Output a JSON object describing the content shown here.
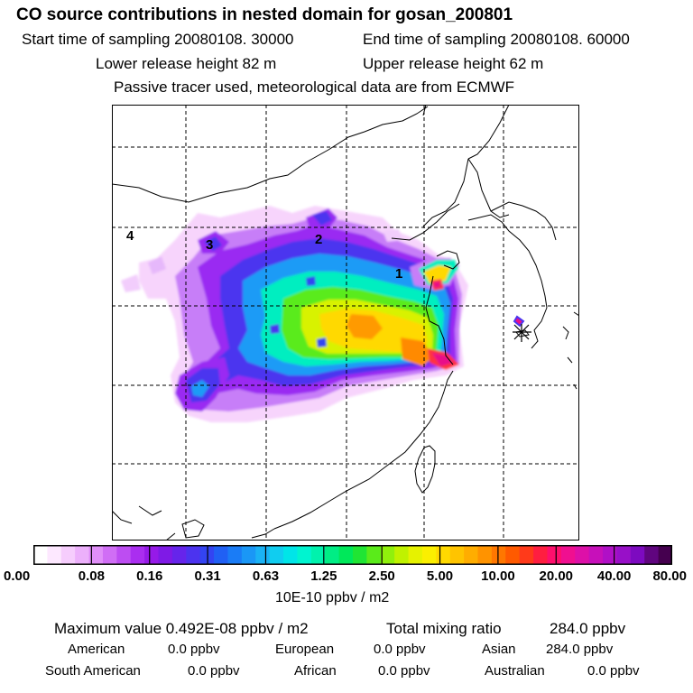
{
  "header": {
    "title": "CO  source contributions in nested domain for gosan_200801",
    "start_label": "Start time of sampling 20080108. 30000",
    "end_label": "End time of sampling 20080108. 60000",
    "lower_label": "Lower release height   82 m",
    "upper_label": "Upper release height   62 m",
    "info": "Passive tracer used, meteorological data are from ECMWF"
  },
  "map": {
    "region_markers": [
      "1",
      "2",
      "3",
      "4"
    ],
    "receptor_marker": "gosan-station"
  },
  "colorbar": {
    "ticks": [
      "0.00",
      "0.08",
      "0.16",
      "0.31",
      "0.63",
      "1.25",
      "2.50",
      "5.00",
      "10.00",
      "20.00",
      "40.00",
      "80.00"
    ],
    "colors": [
      "#ffffff",
      "#fde8ff",
      "#f6cdfd",
      "#ecb0fb",
      "#e08ff8",
      "#d06ef5",
      "#bd4df2",
      "#aa2ef0",
      "#961ae8",
      "#7f1ae6",
      "#6624eb",
      "#4c33ef",
      "#3344f2",
      "#2060f4",
      "#1a7cf6",
      "#1a97f6",
      "#1ab2f5",
      "#10cdf0",
      "#00e5e8",
      "#00f4d0",
      "#00f2ad",
      "#00ed85",
      "#00e85a",
      "#20e534",
      "#5aeb1a",
      "#90f00c",
      "#c0f200",
      "#e6f200",
      "#fbef00",
      "#ffd900",
      "#ffc400",
      "#ffad00",
      "#ff9300",
      "#ff7700",
      "#ff5a00",
      "#ff3a1a",
      "#ff1e40",
      "#ff0f6d",
      "#f00f90",
      "#dd10a8",
      "#c710ba",
      "#b010c6",
      "#9810c8",
      "#7d0ac0",
      "#60057f",
      "#45004f"
    ],
    "unit": "10E-10 ppbv / m2"
  },
  "stats": {
    "max_label": "Maximum value  0.492E-08 ppbv / m2",
    "total_label": "Total mixing ratio",
    "total_value": "284.0 ppbv",
    "american_label": "American",
    "american_value": "0.0 ppbv",
    "european_label": "European",
    "european_value": "0.0 ppbv",
    "asian_label": "Asian",
    "asian_value": "284.0 ppbv",
    "south_american_label": "South American",
    "south_american_value": "0.0 ppbv",
    "african_label": "African",
    "african_value": "0.0 ppbv",
    "australian_label": "Australian",
    "australian_value": "0.0 ppbv"
  }
}
